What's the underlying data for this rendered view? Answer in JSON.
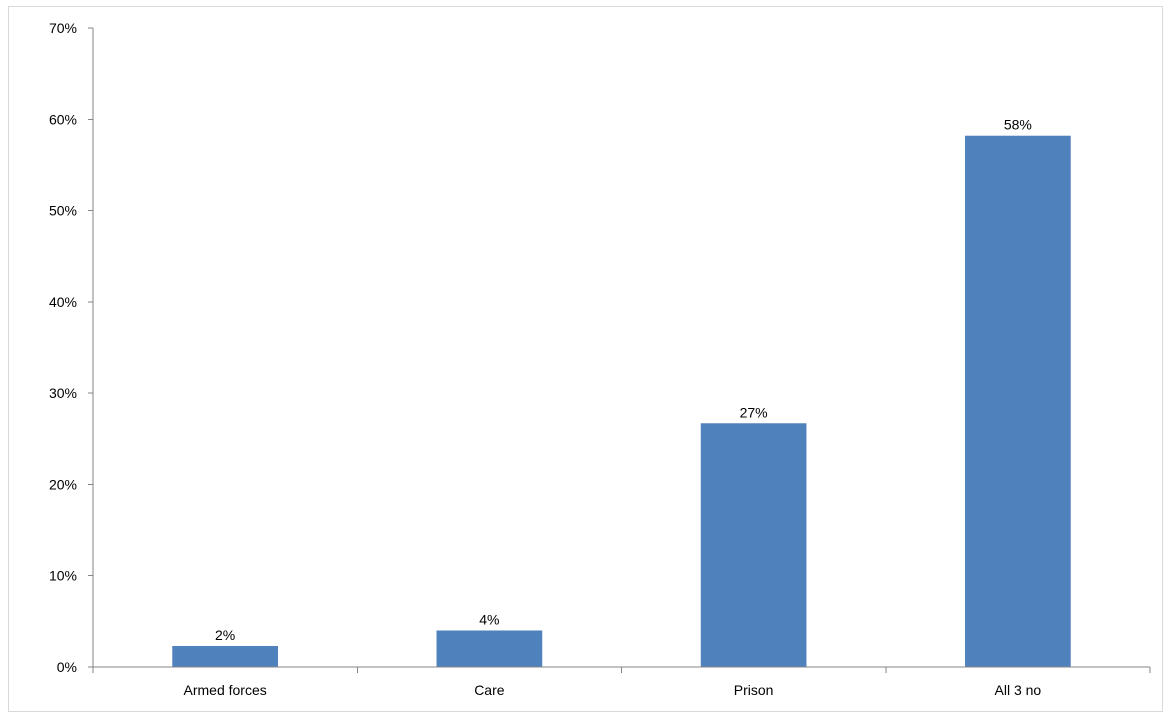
{
  "chart_data": {
    "type": "bar",
    "categories": [
      "Armed forces",
      "Care",
      "Prison",
      "All 3 no"
    ],
    "values": [
      2.3,
      4.0,
      26.7,
      58.2
    ],
    "data_labels": [
      "2%",
      "4%",
      "27%",
      "58%"
    ],
    "ylim": [
      0,
      70
    ],
    "yticks": [
      0,
      10,
      20,
      30,
      40,
      50,
      60,
      70
    ],
    "ytick_labels": [
      "0%",
      "10%",
      "20%",
      "30%",
      "40%",
      "50%",
      "60%",
      "70%"
    ],
    "grid": false,
    "legend": "none",
    "title": "",
    "xlabel": "",
    "ylabel": "",
    "bar_color": "#4f81bd"
  }
}
